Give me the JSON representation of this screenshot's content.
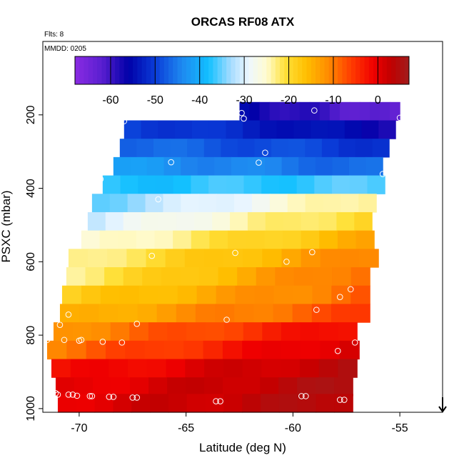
{
  "chart_data": {
    "type": "heatmap",
    "title": "ORCAS RF08 ATX",
    "flts_note": "Flts: 8",
    "mmdd_note": "MMDD: 0205",
    "xlabel": "Latitude (deg N)",
    "ylabel": "PSXC (mbar)",
    "xlim": [
      -71.7,
      -53.0
    ],
    "ylim": [
      1010,
      0
    ],
    "x_ticks": [
      -70,
      -65,
      -60,
      -55
    ],
    "x_tick_labels": [
      "-70",
      "-65",
      "-60",
      "-55"
    ],
    "y_ticks": [
      200,
      400,
      600,
      800,
      1000
    ],
    "y_tick_labels": [
      "200",
      "400",
      "600",
      "800",
      "1000"
    ],
    "colorbar": {
      "range": [
        -68,
        7
      ],
      "ticks": [
        -60,
        -50,
        -40,
        -30,
        -20,
        -10,
        0
      ],
      "tick_labels": [
        "-60",
        "-50",
        "-40",
        "-30",
        "-20",
        "-10",
        "0"
      ],
      "colors": [
        {
          "v": -68,
          "c": "#8a2be2"
        },
        {
          "v": -62,
          "c": "#5a1fd0"
        },
        {
          "v": -56,
          "c": "#0000a8"
        },
        {
          "v": -50,
          "c": "#0a3cd8"
        },
        {
          "v": -44,
          "c": "#1e88f0"
        },
        {
          "v": -38,
          "c": "#12c0ff"
        },
        {
          "v": -33,
          "c": "#a6dcff"
        },
        {
          "v": -29,
          "c": "#eef7ff"
        },
        {
          "v": -25,
          "c": "#fffbd0"
        },
        {
          "v": -21,
          "c": "#ffe23c"
        },
        {
          "v": -16,
          "c": "#ffbe00"
        },
        {
          "v": -11,
          "c": "#ff8a00"
        },
        {
          "v": -6,
          "c": "#ff3c00"
        },
        {
          "v": -1,
          "c": "#f00000"
        },
        {
          "v": 3,
          "c": "#c00000"
        },
        {
          "v": 7,
          "c": "#a01d1d"
        }
      ]
    },
    "rows": [
      {
        "p": 190,
        "lat_start": -62.5,
        "lat_end": -55.0,
        "t_start": -56,
        "t_end": -64
      },
      {
        "p": 240,
        "lat_start": -67.9,
        "lat_end": -55.2,
        "t_start": -49,
        "t_end": -57
      },
      {
        "p": 290,
        "lat_start": -68.1,
        "lat_end": -55.5,
        "t_start": -46,
        "t_end": -51
      },
      {
        "p": 340,
        "lat_start": -68.4,
        "lat_end": -55.8,
        "t_start": -42,
        "t_end": -47
      },
      {
        "p": 390,
        "lat_start": -68.9,
        "lat_end": -55.7,
        "t_start": -38,
        "t_end": -36
      },
      {
        "p": 440,
        "lat_start": -69.4,
        "lat_end": -56.1,
        "t_start": -35,
        "t_end": -22
      },
      {
        "p": 490,
        "lat_start": -69.6,
        "lat_end": -56.3,
        "t_start": -31,
        "t_end": -19
      },
      {
        "p": 540,
        "lat_start": -69.9,
        "lat_end": -56.2,
        "t_start": -27,
        "t_end": -14
      },
      {
        "p": 590,
        "lat_start": -70.5,
        "lat_end": -56.0,
        "t_start": -24,
        "t_end": -10
      },
      {
        "p": 640,
        "lat_start": -70.6,
        "lat_end": -56.4,
        "t_start": -23,
        "t_end": -8
      },
      {
        "p": 690,
        "lat_start": -70.8,
        "lat_end": -56.4,
        "t_start": -19,
        "t_end": -8
      },
      {
        "p": 740,
        "lat_start": -70.9,
        "lat_end": -56.4,
        "t_start": -16,
        "t_end": -6
      },
      {
        "p": 790,
        "lat_start": -71.2,
        "lat_end": -57.0,
        "t_start": -12,
        "t_end": -1
      },
      {
        "p": 840,
        "lat_start": -71.5,
        "lat_end": -56.9,
        "t_start": -10,
        "t_end": 2
      },
      {
        "p": 890,
        "lat_start": -71.3,
        "lat_end": -57.0,
        "t_start": -3,
        "t_end": 4
      },
      {
        "p": 940,
        "lat_start": -71.1,
        "lat_end": -57.2,
        "t_start": -1,
        "t_end": 5
      },
      {
        "p": 985,
        "lat_start": -71.0,
        "lat_end": -57.2,
        "t_start": 0,
        "t_end": 5
      }
    ],
    "points": [
      {
        "x": -62.4,
        "y": 195
      },
      {
        "x": -62.3,
        "y": 210
      },
      {
        "x": -59.0,
        "y": 188
      },
      {
        "x": -55.0,
        "y": 208
      },
      {
        "x": -67.9,
        "y": 217
      },
      {
        "x": -68.1,
        "y": 254
      },
      {
        "x": -68.3,
        "y": 299
      },
      {
        "x": -65.7,
        "y": 329
      },
      {
        "x": -61.3,
        "y": 303
      },
      {
        "x": -61.6,
        "y": 330
      },
      {
        "x": -69.0,
        "y": 375
      },
      {
        "x": -55.8,
        "y": 361
      },
      {
        "x": -66.3,
        "y": 430
      },
      {
        "x": -55.6,
        "y": 551
      },
      {
        "x": -66.6,
        "y": 584
      },
      {
        "x": -62.7,
        "y": 576
      },
      {
        "x": -60.3,
        "y": 600
      },
      {
        "x": -59.1,
        "y": 574
      },
      {
        "x": -57.3,
        "y": 675
      },
      {
        "x": -57.8,
        "y": 696
      },
      {
        "x": -58.9,
        "y": 731
      },
      {
        "x": -70.5,
        "y": 744
      },
      {
        "x": -70.9,
        "y": 772
      },
      {
        "x": -67.3,
        "y": 769
      },
      {
        "x": -63.1,
        "y": 758
      },
      {
        "x": -71.5,
        "y": 813
      },
      {
        "x": -70.7,
        "y": 813
      },
      {
        "x": -70.0,
        "y": 815
      },
      {
        "x": -69.9,
        "y": 813
      },
      {
        "x": -68.9,
        "y": 818
      },
      {
        "x": -68.0,
        "y": 820
      },
      {
        "x": -57.1,
        "y": 820
      },
      {
        "x": -57.9,
        "y": 843
      },
      {
        "x": -71.1,
        "y": 958
      },
      {
        "x": -71.0,
        "y": 962
      },
      {
        "x": -70.5,
        "y": 962
      },
      {
        "x": -70.3,
        "y": 962
      },
      {
        "x": -70.1,
        "y": 965
      },
      {
        "x": -69.5,
        "y": 966
      },
      {
        "x": -69.4,
        "y": 966
      },
      {
        "x": -68.6,
        "y": 968
      },
      {
        "x": -68.4,
        "y": 968
      },
      {
        "x": -67.5,
        "y": 970
      },
      {
        "x": -67.3,
        "y": 970
      },
      {
        "x": -63.6,
        "y": 980
      },
      {
        "x": -63.4,
        "y": 980
      },
      {
        "x": -59.6,
        "y": 966
      },
      {
        "x": -59.4,
        "y": 966
      },
      {
        "x": -57.8,
        "y": 976
      },
      {
        "x": -57.6,
        "y": 976
      }
    ],
    "arrow": {
      "x": -53.0,
      "direction": "down"
    },
    "grid": false,
    "legend": "colorbar-top"
  }
}
